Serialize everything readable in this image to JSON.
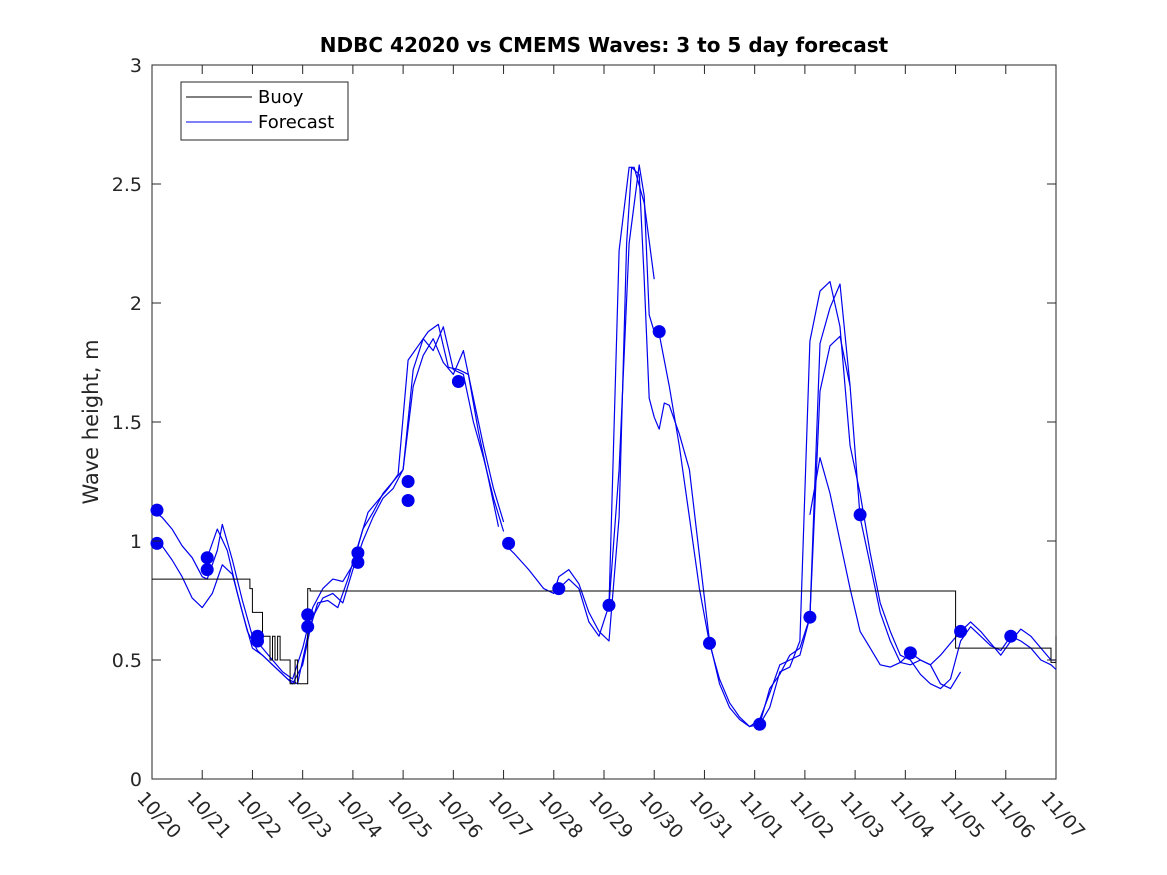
{
  "chart_data": {
    "type": "line",
    "title": "NDBC 42020 vs CMEMS Waves: 3 to 5 day forecast",
    "xlabel": "",
    "ylabel": "Wave height, m",
    "xlim": [
      0,
      18
    ],
    "ylim": [
      0,
      3
    ],
    "yticks": [
      0,
      0.5,
      1,
      1.5,
      2,
      2.5,
      3
    ],
    "ytick_labels": [
      "0",
      "0.5",
      "1",
      "1.5",
      "2",
      "2.5",
      "3"
    ],
    "xticks": [
      0,
      1,
      2,
      3,
      4,
      5,
      6,
      7,
      8,
      9,
      10,
      11,
      12,
      13,
      14,
      15,
      16,
      17,
      18
    ],
    "xtick_labels": [
      "10/20",
      "10/21",
      "10/22",
      "10/23",
      "10/24",
      "10/25",
      "10/26",
      "10/27",
      "10/28",
      "10/29",
      "10/30",
      "10/31",
      "11/01",
      "11/02",
      "11/03",
      "11/04",
      "11/05",
      "11/06",
      "11/07"
    ],
    "legend": {
      "position": "top-left",
      "entries": [
        "Buoy",
        "Forecast"
      ]
    },
    "colors": {
      "buoy": "#000000",
      "forecast": "#0000ee",
      "markers": "#0000ee"
    },
    "series": [
      {
        "name": "Buoy",
        "x": [
          0,
          1.95,
          2.0,
          2.15,
          2.2,
          2.3,
          2.35,
          2.4,
          2.45,
          2.5,
          2.55,
          2.7,
          2.75,
          2.85,
          2.9,
          3.1,
          3.15,
          16.0,
          17.9,
          18.0
        ],
        "y": [
          0.84,
          0.8,
          0.7,
          0.7,
          0.6,
          0.6,
          0.5,
          0.6,
          0.5,
          0.6,
          0.5,
          0.5,
          0.4,
          0.5,
          0.4,
          0.8,
          0.79,
          0.55,
          0.49,
          0.6
        ]
      },
      {
        "name": "Forecast",
        "segments": [
          {
            "x": [
              0,
              0.2,
              0.4,
              0.6,
              0.8,
              1.0,
              1.1,
              1.3,
              1.4,
              1.6,
              1.8,
              2.0,
              2.2,
              2.4,
              2.6,
              2.8,
              3.0,
              3.2,
              3.4,
              3.6,
              3.8,
              4.0,
              4.2,
              4.4,
              4.6,
              4.8,
              5.0,
              5.2,
              5.4,
              5.6,
              5.8,
              6.0,
              6.2,
              6.4,
              6.6,
              6.8,
              7.0
            ],
            "y": [
              1.13,
              1.1,
              1.05,
              0.98,
              0.93,
              0.85,
              0.84,
              0.96,
              1.07,
              0.92,
              0.75,
              0.6,
              0.55,
              0.5,
              0.45,
              0.42,
              0.55,
              0.72,
              0.8,
              0.84,
              0.83,
              0.9,
              1.05,
              1.12,
              1.2,
              1.25,
              1.3,
              1.65,
              1.78,
              1.85,
              1.75,
              1.7,
              1.8,
              1.6,
              1.4,
              1.22,
              1.08
            ]
          },
          {
            "x": [
              0,
              0.2,
              0.4,
              0.6,
              0.8,
              1.0,
              1.2,
              1.4,
              1.6,
              1.8,
              2.0,
              2.2,
              2.4,
              2.6,
              2.8,
              3.0,
              3.2,
              3.4,
              3.6,
              3.8,
              4.0,
              4.2,
              4.4,
              4.6,
              4.8,
              5.0,
              5.2,
              5.4,
              5.6,
              5.8,
              6.0,
              6.2,
              6.4,
              6.6,
              6.8,
              7.0
            ],
            "y": [
              0.99,
              0.98,
              0.92,
              0.85,
              0.76,
              0.72,
              0.78,
              0.9,
              0.86,
              0.7,
              0.55,
              0.52,
              0.48,
              0.44,
              0.4,
              0.48,
              0.68,
              0.76,
              0.78,
              0.74,
              0.88,
              1.0,
              1.1,
              1.18,
              1.22,
              1.3,
              1.72,
              1.85,
              1.8,
              1.9,
              1.72,
              1.7,
              1.5,
              1.35,
              1.18,
              1.04
            ]
          },
          {
            "x": [
              1.1,
              1.3,
              1.5,
              1.7,
              1.9,
              2.1,
              2.3,
              2.5,
              2.7,
              2.9,
              3.1,
              3.3,
              3.5,
              3.7,
              3.9,
              4.1,
              4.3,
              4.5,
              4.7,
              4.9,
              5.1,
              5.3,
              5.5,
              5.7,
              5.9,
              6.1,
              6.3,
              6.5,
              6.7,
              6.9
            ],
            "y": [
              0.93,
              1.05,
              0.96,
              0.78,
              0.62,
              0.54,
              0.5,
              0.46,
              0.42,
              0.4,
              0.6,
              0.74,
              0.75,
              0.72,
              0.84,
              0.98,
              1.12,
              1.17,
              1.22,
              1.28,
              1.76,
              1.82,
              1.88,
              1.91,
              1.73,
              1.72,
              1.7,
              1.46,
              1.26,
              1.06
            ]
          },
          {
            "x": [
              7.0,
              7.2,
              7.5,
              7.8,
              8.0,
              8.1,
              8.3,
              8.5,
              8.7,
              8.9,
              9.1,
              9.3,
              9.45,
              9.55,
              9.7,
              9.8,
              9.9,
              10.0,
              10.1,
              10.2,
              10.3,
              10.5,
              10.7,
              10.9,
              11.1,
              11.3,
              11.5,
              11.7,
              11.9,
              12.1,
              12.3,
              12.5,
              12.7,
              12.9,
              13.1,
              13.3,
              13.5,
              13.7,
              13.9,
              14.1,
              14.3,
              14.5,
              14.7,
              14.9,
              15.1,
              15.3,
              15.5,
              15.7,
              15.9,
              16.1,
              16.3,
              16.5,
              16.7,
              16.9,
              17.1,
              17.3,
              17.5,
              17.7,
              17.9,
              18.0
            ],
            "y": [
              0.99,
              0.95,
              0.88,
              0.8,
              0.78,
              0.85,
              0.88,
              0.82,
              0.7,
              0.62,
              0.58,
              1.1,
              2.25,
              2.57,
              2.54,
              2.1,
              1.6,
              1.52,
              1.47,
              1.58,
              1.57,
              1.45,
              1.3,
              0.94,
              0.58,
              0.4,
              0.3,
              0.25,
              0.22,
              0.25,
              0.36,
              0.48,
              0.5,
              0.52,
              0.68,
              1.63,
              1.82,
              1.86,
              1.65,
              1.1,
              0.9,
              0.7,
              0.58,
              0.49,
              0.48,
              0.5,
              0.48,
              0.52,
              0.57,
              0.62,
              0.66,
              0.62,
              0.57,
              0.52,
              0.58,
              0.63,
              0.6,
              0.55,
              0.5,
              0.5
            ]
          },
          {
            "x": [
              8.1,
              8.3,
              8.5,
              8.7,
              8.9,
              9.1,
              9.3,
              9.5,
              9.7,
              9.8,
              9.9,
              10.0,
              10.1,
              10.3,
              10.5,
              10.7,
              10.9,
              11.1,
              11.3,
              11.5,
              11.7,
              11.9,
              12.1,
              12.3,
              12.5,
              12.7,
              12.9,
              13.1,
              13.3,
              13.5,
              13.7,
              13.9,
              14.1,
              14.3,
              14.5,
              14.7,
              14.9,
              15.1,
              15.3,
              15.5,
              15.7,
              15.9,
              16.1,
              16.3,
              16.5,
              16.7,
              16.9,
              17.1,
              17.3,
              17.5,
              17.7,
              17.9,
              18.0
            ],
            "y": [
              0.8,
              0.84,
              0.8,
              0.66,
              0.6,
              0.73,
              1.3,
              2.25,
              2.58,
              2.45,
              1.95,
              1.88,
              1.87,
              1.65,
              1.4,
              1.1,
              0.8,
              0.57,
              0.42,
              0.32,
              0.26,
              0.22,
              0.23,
              0.3,
              0.45,
              0.47,
              0.58,
              1.84,
              2.05,
              2.09,
              1.9,
              1.4,
              1.2,
              0.95,
              0.74,
              0.62,
              0.52,
              0.5,
              0.44,
              0.4,
              0.38,
              0.42,
              0.58,
              0.64,
              0.6,
              0.56,
              0.54,
              0.6,
              0.58,
              0.55,
              0.5,
              0.48,
              0.46
            ]
          },
          {
            "x": [
              9.1,
              9.3,
              9.5,
              9.6,
              9.8,
              10.0
            ],
            "y": [
              0.73,
              2.22,
              2.57,
              2.57,
              2.42,
              2.1
            ]
          },
          {
            "x": [
              12.1,
              12.3,
              12.5,
              12.7,
              12.9,
              13.1,
              13.3,
              13.5,
              13.7,
              13.9
            ],
            "y": [
              0.23,
              0.38,
              0.44,
              0.52,
              0.55,
              0.68,
              1.83,
              1.98,
              2.08,
              1.65
            ]
          },
          {
            "x": [
              13.1,
              13.3,
              13.5,
              13.7,
              13.9,
              14.1,
              14.3,
              14.5,
              14.7,
              14.9,
              15.1,
              15.3,
              15.5,
              15.7,
              15.9,
              16.1
            ],
            "y": [
              1.11,
              1.35,
              1.2,
              1.0,
              0.8,
              0.62,
              0.55,
              0.48,
              0.47,
              0.49,
              0.53,
              0.5,
              0.48,
              0.4,
              0.38,
              0.45
            ]
          }
        ]
      },
      {
        "name": "Forecast start points",
        "x": [
          0.1,
          0.1,
          1.1,
          1.1,
          2.1,
          2.1,
          3.1,
          3.1,
          4.1,
          4.1,
          5.1,
          5.1,
          6.1,
          7.1,
          8.1,
          9.1,
          10.1,
          11.1,
          12.1,
          13.1,
          14.1,
          15.1,
          16.1,
          17.1
        ],
        "y": [
          1.13,
          0.99,
          0.93,
          0.88,
          0.6,
          0.58,
          0.69,
          0.64,
          0.95,
          0.91,
          1.25,
          1.17,
          1.67,
          0.99,
          0.8,
          0.73,
          1.88,
          0.57,
          0.23,
          0.68,
          1.11,
          0.53,
          0.62,
          0.6
        ]
      }
    ]
  }
}
